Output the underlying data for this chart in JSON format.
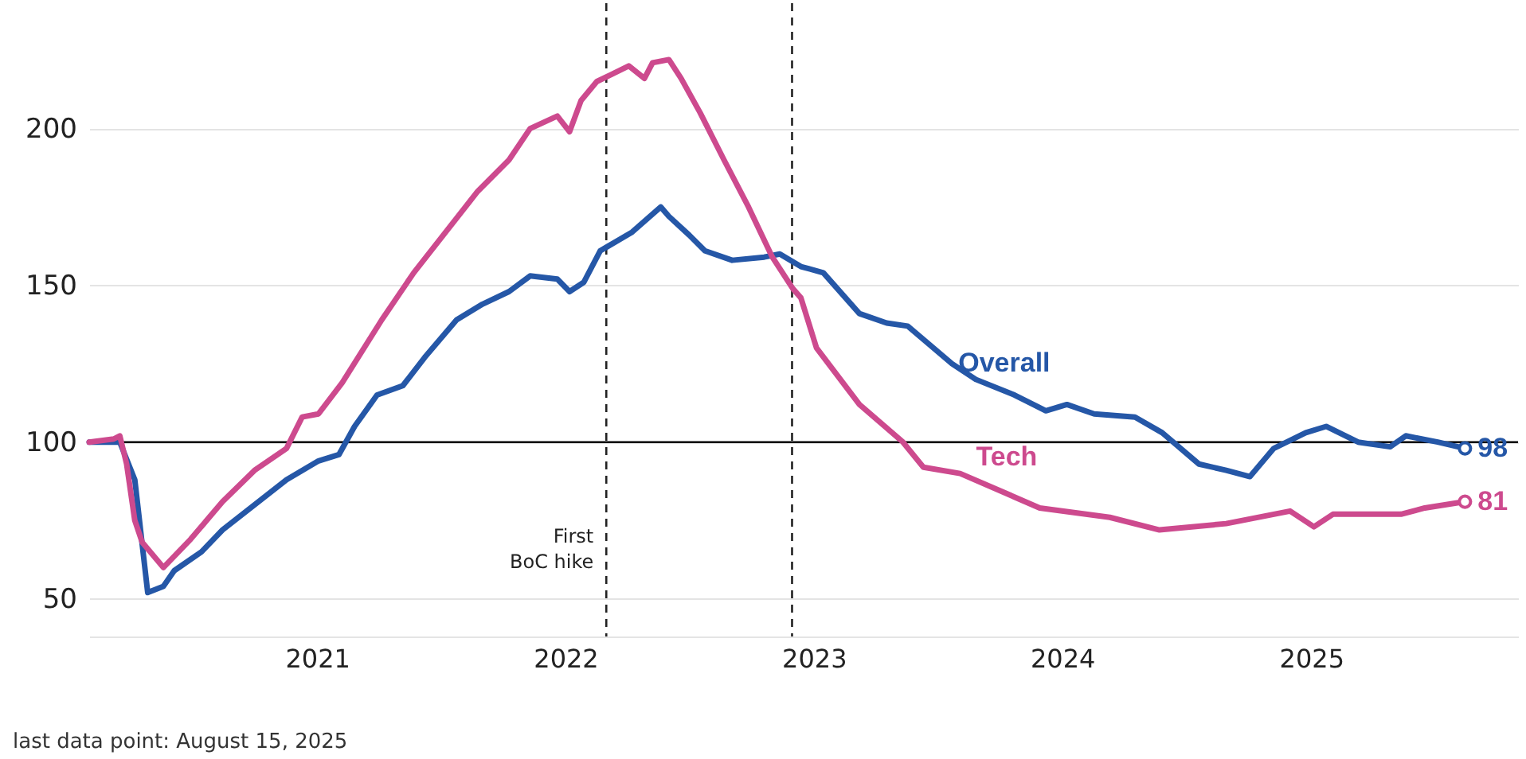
{
  "chart_data": {
    "type": "line",
    "xlim": [
      "2020-02-01",
      "2025-11-01"
    ],
    "xticks": [
      "2021",
      "2022",
      "2023",
      "2024",
      "2025"
    ],
    "ylim": [
      38,
      240
    ],
    "yticks": [
      50,
      100,
      150,
      200
    ],
    "grid": "y",
    "series": [
      {
        "name": "Overall",
        "color": "#2557a7",
        "x": [
          "2020-02-01",
          "2020-03-17",
          "2020-04-08",
          "2020-04-27",
          "2020-05-20",
          "2020-06-05",
          "2020-07-15",
          "2020-08-15",
          "2020-10-01",
          "2020-11-17",
          "2021-01-03",
          "2021-02-02",
          "2021-02-25",
          "2021-03-30",
          "2021-05-07",
          "2021-06-08",
          "2021-07-25",
          "2021-09-01",
          "2021-10-10",
          "2021-11-10",
          "2021-12-20",
          "2022-01-07",
          "2022-01-28",
          "2022-02-21",
          "2022-04-09",
          "2022-05-21",
          "2022-06-02",
          "2022-07-02",
          "2022-07-25",
          "2022-09-03",
          "2022-10-20",
          "2022-11-12",
          "2022-12-13",
          "2023-01-15",
          "2023-03-09",
          "2023-04-18",
          "2023-05-19",
          "2023-07-23",
          "2023-08-27",
          "2023-10-23",
          "2023-12-08",
          "2024-01-08",
          "2024-02-17",
          "2024-04-17",
          "2024-05-27",
          "2024-07-20",
          "2024-08-29",
          "2024-10-03",
          "2024-11-07",
          "2024-12-24",
          "2025-01-23",
          "2025-03-11",
          "2025-04-27",
          "2025-05-20",
          "2025-07-06",
          "2025-08-15"
        ],
        "values": [
          100,
          100,
          88,
          52,
          54,
          59,
          65,
          72,
          80,
          88,
          94,
          96,
          105,
          115,
          118,
          127,
          139,
          144,
          148,
          153,
          152,
          148,
          151,
          161,
          167,
          175,
          172,
          166,
          161,
          158,
          159,
          160,
          156,
          154,
          141,
          138,
          137,
          125,
          120,
          115,
          110,
          112,
          109,
          108,
          103,
          93,
          91,
          89,
          98,
          103,
          105,
          100,
          98.5,
          102,
          100,
          98
        ],
        "value_labels": [
          null,
          null,
          null,
          null,
          null,
          null,
          null,
          null,
          null,
          null,
          null,
          null,
          null,
          null,
          null,
          null,
          null,
          null,
          null,
          null,
          null,
          null,
          null,
          null,
          null,
          null,
          null,
          null,
          null,
          null,
          null,
          null,
          null,
          null,
          null,
          null,
          null,
          null,
          null,
          null,
          null,
          null,
          null,
          null,
          null,
          null,
          null,
          null,
          null,
          null,
          null,
          null,
          null,
          null,
          null,
          "98"
        ]
      },
      {
        "name": "Tech",
        "color": "#cd4a8e",
        "x": [
          "2020-02-01",
          "2020-03-08",
          "2020-03-17",
          "2020-03-27",
          "2020-04-08",
          "2020-04-19",
          "2020-05-20",
          "2020-06-29",
          "2020-08-15",
          "2020-10-01",
          "2020-11-17",
          "2020-12-10",
          "2021-01-03",
          "2021-02-07",
          "2021-04-06",
          "2021-05-23",
          "2021-07-09",
          "2021-08-25",
          "2021-10-10",
          "2021-11-10",
          "2021-12-20",
          "2022-01-07",
          "2022-01-24",
          "2022-02-16",
          "2022-04-04",
          "2022-04-27",
          "2022-05-09",
          "2022-06-02",
          "2022-06-20",
          "2022-07-18",
          "2022-08-22",
          "2022-09-27",
          "2022-11-01",
          "2022-12-01",
          "2022-12-13",
          "2023-01-05",
          "2023-03-09",
          "2023-05-12",
          "2023-06-11",
          "2023-08-04",
          "2023-11-29",
          "2024-03-11",
          "2024-05-23",
          "2024-08-29",
          "2024-12-01",
          "2025-01-05",
          "2025-02-02",
          "2025-05-13",
          "2025-06-17",
          "2025-08-15"
        ],
        "values": [
          100,
          101,
          102,
          93,
          75,
          68,
          60,
          69,
          81,
          91,
          98,
          108,
          109,
          119,
          139,
          154,
          167,
          180,
          190,
          200,
          204,
          199,
          209,
          215,
          220,
          216,
          221,
          222,
          216,
          205,
          190,
          175,
          159,
          149,
          146,
          130,
          112,
          100,
          92,
          90,
          79,
          76,
          72,
          74,
          78,
          73,
          77,
          77,
          79,
          81
        ],
        "value_labels": [
          null,
          null,
          null,
          null,
          null,
          null,
          null,
          null,
          null,
          null,
          null,
          null,
          null,
          null,
          null,
          null,
          null,
          null,
          null,
          null,
          null,
          null,
          null,
          null,
          null,
          null,
          null,
          null,
          null,
          null,
          null,
          null,
          null,
          null,
          null,
          null,
          null,
          null,
          null,
          null,
          null,
          null,
          null,
          null,
          null,
          null,
          null,
          null,
          null,
          "81"
        ]
      }
    ],
    "ref_lines": [
      {
        "axis": "y",
        "value": 100,
        "color": "#000000",
        "line_style": "solid"
      },
      {
        "axis": "x",
        "value": "2022-03-02",
        "label": "First\nBoC hike",
        "color": "#222222",
        "line_style": "dashed"
      },
      {
        "axis": "x",
        "value": "2022-11-30",
        "color": "#222222",
        "line_style": "dashed"
      }
    ],
    "annotations": [
      "last data point: August 15, 2025"
    ]
  }
}
